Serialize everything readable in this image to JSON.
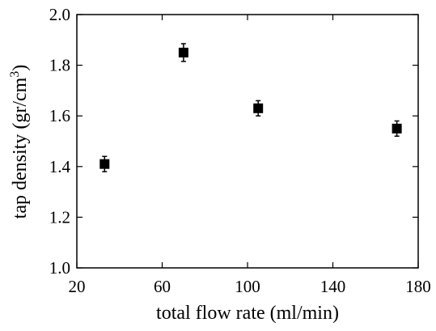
{
  "chart_data": {
    "type": "scatter",
    "xlabel": "total flow rate (ml/min)",
    "ylabel_parts": [
      "tap density (gr/cm",
      "3",
      ")"
    ],
    "x": [
      33,
      70,
      105,
      170
    ],
    "values": [
      1.41,
      1.85,
      1.63,
      1.55
    ],
    "errors": [
      0.03,
      0.035,
      0.03,
      0.03
    ],
    "color": "#000000",
    "xlim": [
      20,
      180
    ],
    "xticks": [
      20,
      60,
      100,
      140,
      180
    ],
    "ylim": [
      1.0,
      2.0
    ],
    "yticks": [
      {
        "value": 1.0,
        "label": "1.0"
      },
      1.2,
      1.4,
      1.6,
      1.8,
      {
        "value": 2.0,
        "label": "2.0"
      }
    ]
  }
}
